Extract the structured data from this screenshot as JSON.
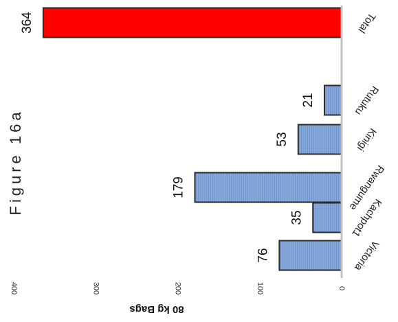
{
  "chart_data": {
    "type": "bar",
    "title": "Figure 16a",
    "ylabel": "80 kg Bags",
    "xlabel": "",
    "categories": [
      "Victoria",
      "Kachpot1",
      "Rwangume",
      "Kinigi",
      "Rutuku",
      "Total"
    ],
    "values": [
      76,
      35,
      179,
      53,
      21,
      364
    ],
    "value_labels": [
      "76",
      "35",
      "179",
      "53",
      "21",
      "364"
    ],
    "ylim": [
      0,
      400
    ],
    "yticks": [
      "0",
      "100",
      "200",
      "300",
      "400"
    ],
    "grid": false,
    "legend": "none",
    "colors": {
      "bar": "#7fa3d6",
      "bar_stroke": "#2a2a2a",
      "highlight": "#ff0000",
      "axis": "#c0c0c0"
    }
  }
}
